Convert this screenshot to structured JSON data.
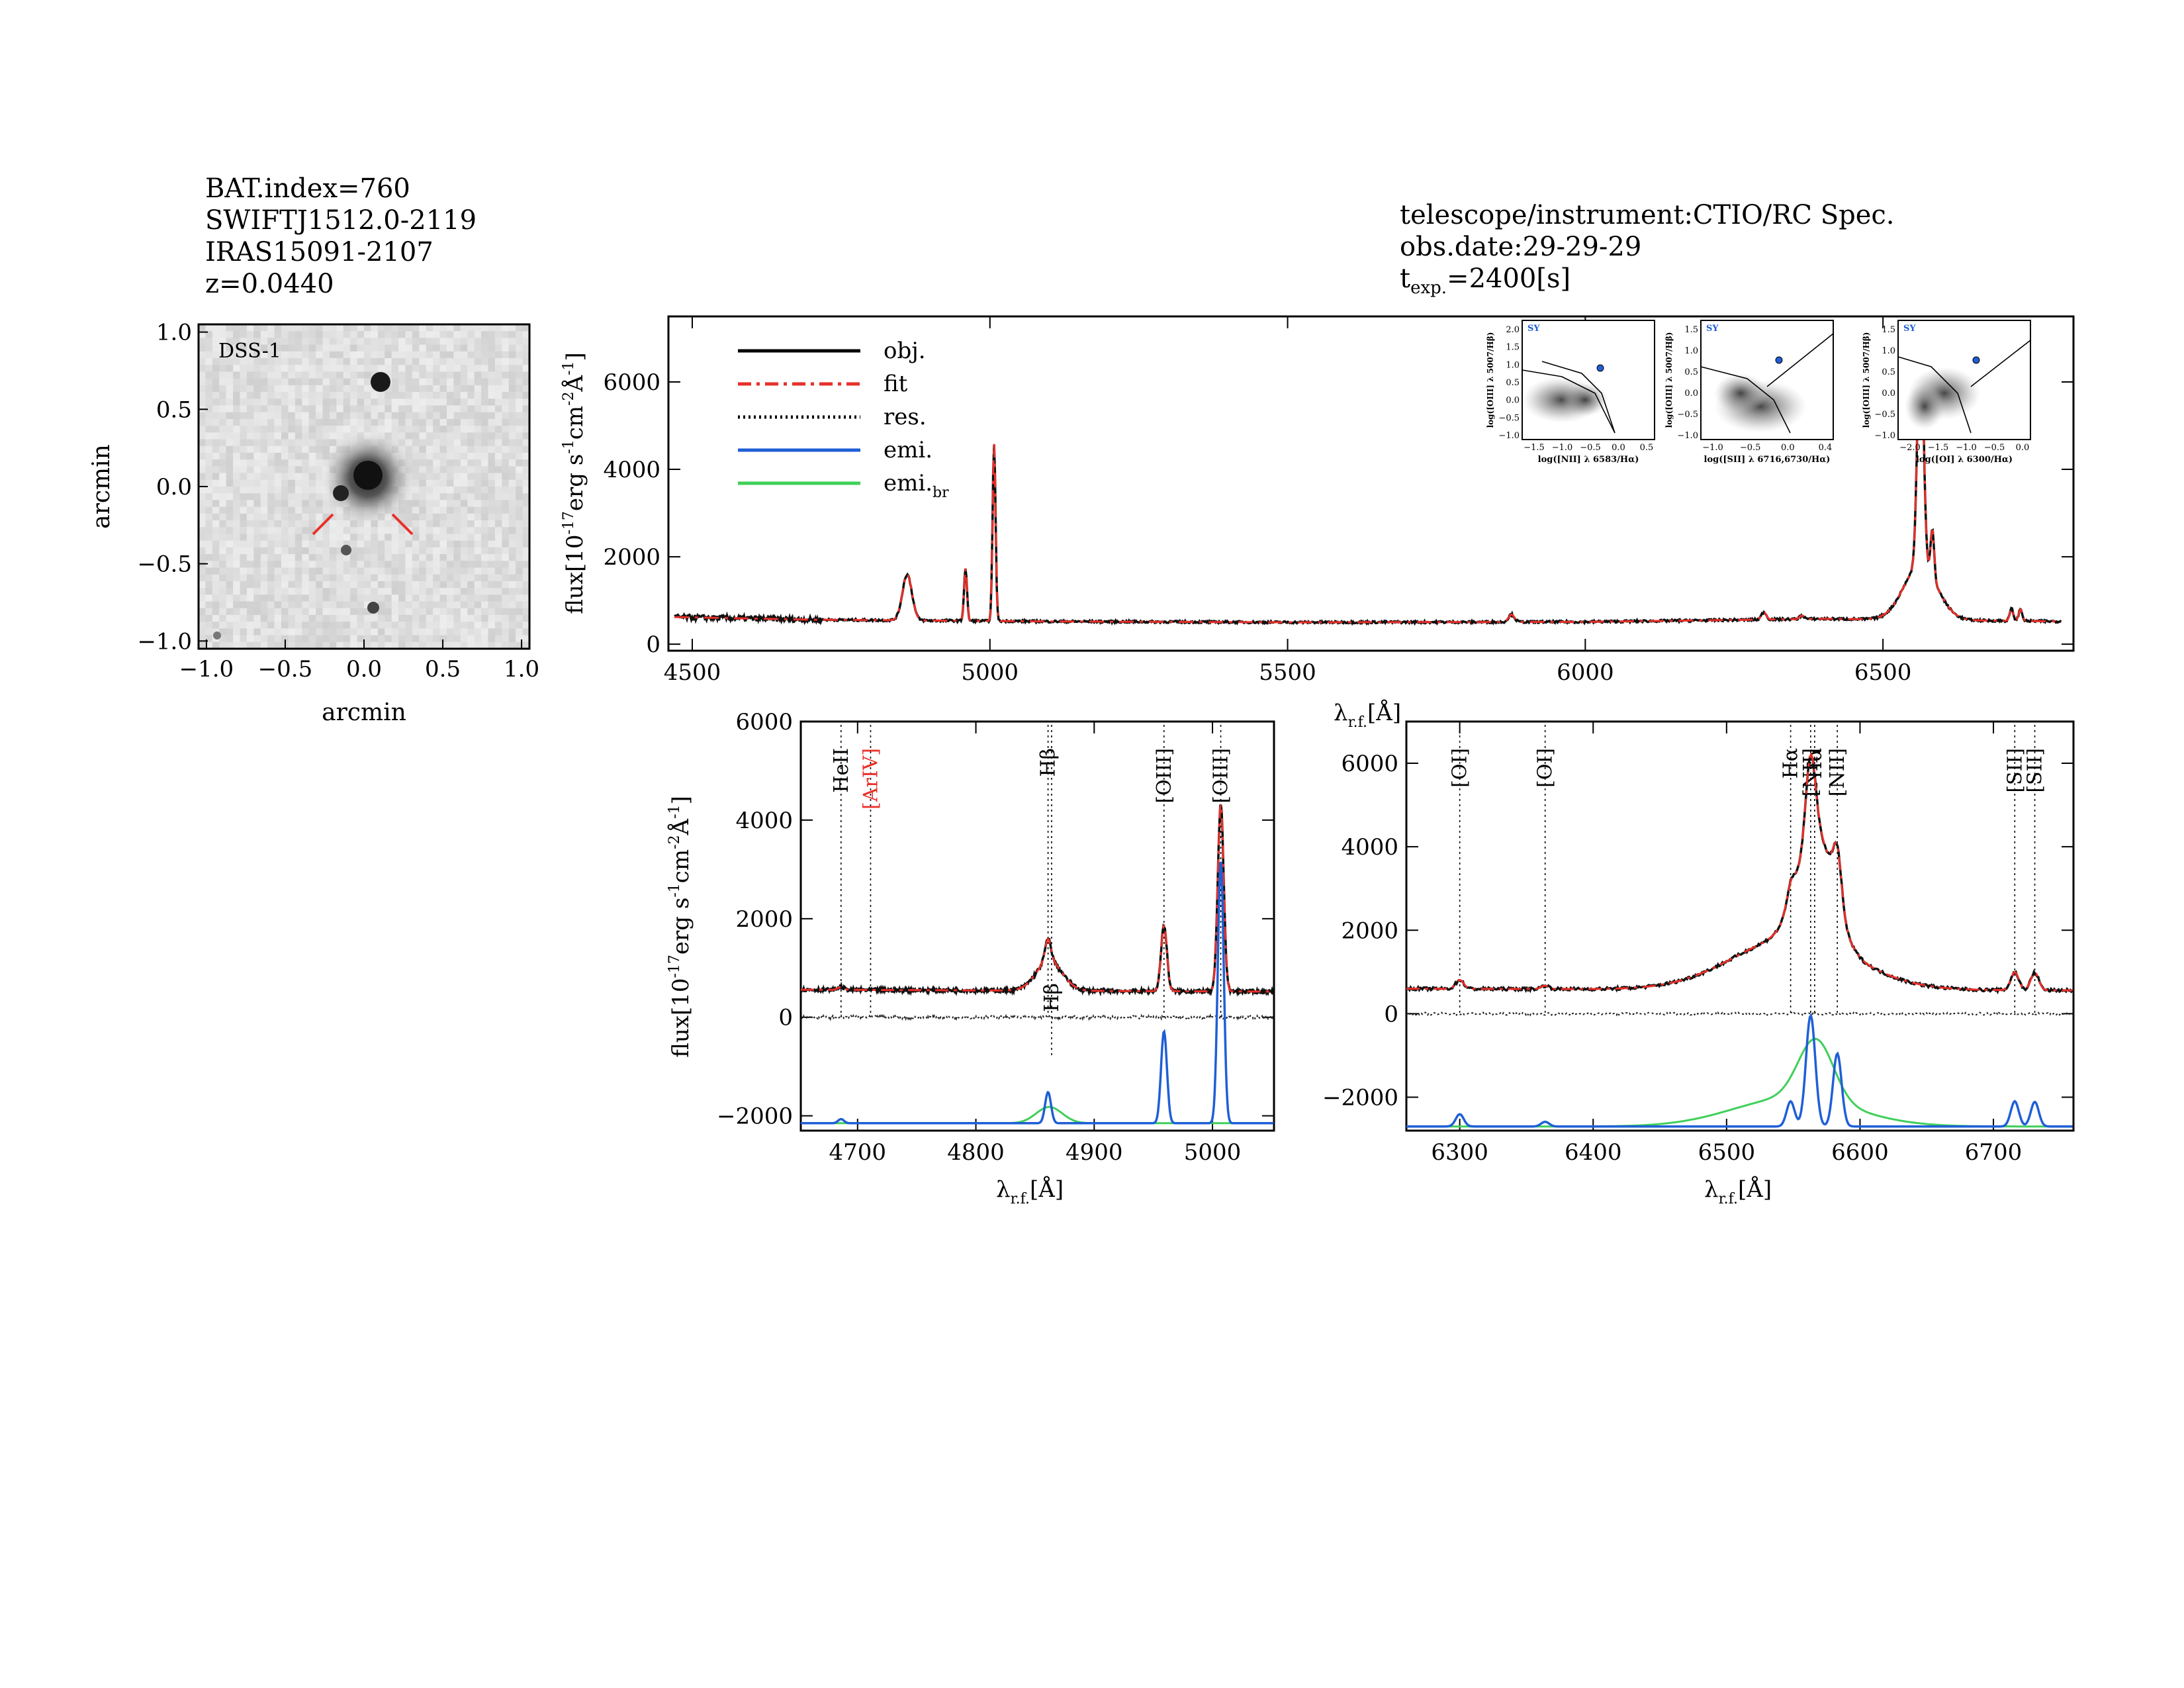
{
  "header_left": {
    "bat_index": "BAT.index=760",
    "swift_name": "SWIFTJ1512.0-2119",
    "iras_name": "IRAS15091-2107",
    "redshift": "z=0.0440"
  },
  "header_right": {
    "instrument": "telescope/instrument:CTIO/RC Spec.",
    "obs_date": "obs.date:29-29-29",
    "exposure_prefix": "t",
    "exposure_sub": "exp.",
    "exposure_value": "=2400[s]"
  },
  "image_panel": {
    "label": "DSS-1",
    "xlabel": "arcmin",
    "ylabel": "arcmin",
    "xticks": [
      "-1.0",
      "-0.5",
      "0.0",
      "0.5",
      "1.0"
    ],
    "yticks": [
      "1.0",
      "0.5",
      "0.0",
      "-0.5",
      "-1.0"
    ],
    "marker_color": "#e8302a"
  },
  "legend": [
    {
      "label": "obj.",
      "style": "solid",
      "color": "#000000"
    },
    {
      "label": "fit",
      "style": "dashdot",
      "color": "#e8302a"
    },
    {
      "label": "res.",
      "style": "dotted",
      "color": "#000000"
    },
    {
      "label": "emi.",
      "style": "solid",
      "color": "#1f5fd6"
    },
    {
      "label": "emi.",
      "label_sub": "br",
      "style": "solid",
      "color": "#3fcf5a"
    }
  ],
  "axes_text": {
    "flux_label": "flux[10",
    "flux_exp1": "-17",
    "flux_mid": "erg s",
    "flux_exp2": "-1",
    "flux_mid2": "cm",
    "flux_exp3": "-2",
    "flux_unit": "Å",
    "flux_exp4": "-1",
    "flux_end": "]",
    "lambda_label": "λ",
    "lambda_sub": "r.f.",
    "lambda_unit": "[Å]"
  },
  "bpt": [
    {
      "tag": "SY",
      "xlabel": "log([NII] λ 6583/Hα)",
      "ylabel": "log([OIII] λ 5007/Hβ)",
      "xticks": [
        "-1.5",
        "-1.0",
        "-0.5",
        "0.0",
        "0.5"
      ],
      "yticks": [
        "2.0",
        "1.5",
        "1.0",
        "0.5",
        "0.0",
        "-0.5",
        "-1.0"
      ]
    },
    {
      "tag": "SY",
      "xlabel": "log([SII] λ 6716,6730/Hα)",
      "ylabel": "log([OIII] λ 5007/Hβ)",
      "xticks": [
        "-1.0",
        "-0.5",
        "0.0",
        "0.4"
      ],
      "yticks": [
        "1.5",
        "1.0",
        "0.5",
        "0.0",
        "-0.5",
        "-1.0"
      ]
    },
    {
      "tag": "SY",
      "xlabel": "log([OI] λ 6300/Hα)",
      "ylabel": "log([OIII] λ 5007/Hβ)",
      "xticks": [
        "-2.0",
        "-1.5",
        "-1.0",
        "-0.5",
        "0.0"
      ],
      "yticks": [
        "1.5",
        "1.0",
        "0.5",
        "0.0",
        "-0.5",
        "-1.0"
      ]
    }
  ],
  "line_labels_left": [
    {
      "text": "HeII",
      "color": "#000000"
    },
    {
      "text": "[ArIV]",
      "color": "#e8302a"
    },
    {
      "text": "Hβ",
      "color": "#000000"
    },
    {
      "text": "[OIII]",
      "color": "#000000"
    },
    {
      "text": "[OIII]",
      "color": "#000000"
    },
    {
      "text": "Hβ",
      "color": "#000000"
    }
  ],
  "line_labels_right": [
    {
      "text": "[OI]",
      "color": "#000000"
    },
    {
      "text": "[OI]",
      "color": "#000000"
    },
    {
      "text": "Hα",
      "color": "#000000"
    },
    {
      "text": "[NII]",
      "color": "#000000"
    },
    {
      "text": "Hα",
      "color": "#000000"
    },
    {
      "text": "[NII]",
      "color": "#000000"
    },
    {
      "text": "[SII]",
      "color": "#000000"
    },
    {
      "text": "[SII]",
      "color": "#000000"
    }
  ],
  "chart_data": [
    {
      "type": "line",
      "panel": "full spectrum",
      "xlim": [
        4460,
        6820
      ],
      "ylim": [
        -150,
        7500
      ],
      "xticks": [
        4500,
        5000,
        5500,
        6000,
        6500
      ],
      "yticks": [
        0,
        2000,
        4000,
        6000
      ],
      "continuum": [
        [
          4470,
          620
        ],
        [
          4700,
          560
        ],
        [
          5100,
          520
        ],
        [
          5500,
          500
        ],
        [
          6000,
          510
        ],
        [
          6400,
          580
        ],
        [
          6800,
          520
        ]
      ],
      "lines": [
        {
          "center": 4861,
          "amp": 1050,
          "sigma": 8
        },
        {
          "center": 4959,
          "amp": 1200,
          "sigma": 2.5
        },
        {
          "center": 5007,
          "amp": 4050,
          "sigma": 2.5
        },
        {
          "center": 5876,
          "amp": 170,
          "sigma": 5
        },
        {
          "center": 6300,
          "amp": 170,
          "sigma": 4
        },
        {
          "center": 6364,
          "amp": 80,
          "sigma": 4
        },
        {
          "center": 6563,
          "amp": 5600,
          "sigma": 5
        },
        {
          "center": 6583,
          "amp": 1100,
          "sigma": 3
        },
        {
          "center": 6563,
          "amp": 1250,
          "sigma": 28
        },
        {
          "center": 6716,
          "amp": 280,
          "sigma": 3
        },
        {
          "center": 6731,
          "amp": 270,
          "sigma": 3
        }
      ],
      "series": [
        {
          "name": "obj."
        },
        {
          "name": "fit"
        }
      ]
    },
    {
      "type": "line",
      "panel": "Hbeta region",
      "xlim": [
        4652,
        5052
      ],
      "ylim": [
        -2300,
        6000
      ],
      "xticks": [
        4700,
        4800,
        4900,
        5000
      ],
      "yticks": [
        -2000,
        0,
        2000,
        4000,
        6000
      ],
      "emi_offset": -2150,
      "markers": [
        4686,
        4711,
        4861,
        4959,
        5007,
        4864
      ],
      "lines": [
        {
          "center": 4686,
          "amp": 60,
          "sigma": 2.5
        },
        {
          "center": 4861,
          "amp": 450,
          "sigma": 2.5
        },
        {
          "center": 4862,
          "amp": 600,
          "sigma": 11
        },
        {
          "center": 4959,
          "amp": 1330,
          "sigma": 2.5
        },
        {
          "center": 5007,
          "amp": 3800,
          "sigma": 2.5
        }
      ],
      "continuum": [
        [
          4652,
          560
        ],
        [
          5052,
          520
        ]
      ]
    },
    {
      "type": "line",
      "panel": "Halpha region",
      "xlim": [
        4260,
        6760
      ],
      "ylim": [
        -2800,
        7000
      ],
      "xticks": [
        6300,
        6400,
        6500,
        6600,
        6700
      ],
      "yticks": [
        -2000,
        0,
        2000,
        4000,
        6000
      ],
      "emi_offset": -2700,
      "markers": [
        6300,
        6364,
        6548,
        6563,
        6566,
        6583,
        6716,
        6731
      ],
      "lines": [
        {
          "center": 6300,
          "amp": 210,
          "sigma": 3
        },
        {
          "center": 6364,
          "amp": 80,
          "sigma": 3
        },
        {
          "center": 6548,
          "amp": 430,
          "sigma": 3
        },
        {
          "center": 6563,
          "amp": 1900,
          "sigma": 3.5
        },
        {
          "center": 6567,
          "amp": 2650,
          "sigma": 13
        },
        {
          "center": 6550,
          "amp": 1250,
          "sigma": 45
        },
        {
          "center": 6583,
          "amp": 1250,
          "sigma": 3.2
        },
        {
          "center": 6716,
          "amp": 430,
          "sigma": 3
        },
        {
          "center": 6731,
          "amp": 420,
          "sigma": 3
        }
      ],
      "continuum": [
        [
          6260,
          600
        ],
        [
          6760,
          560
        ]
      ]
    }
  ]
}
